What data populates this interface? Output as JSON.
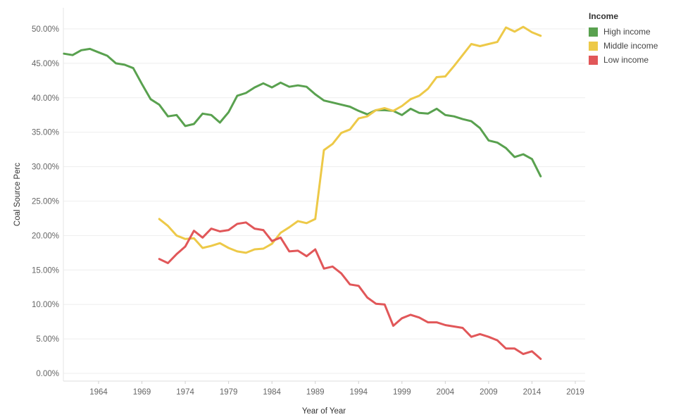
{
  "chart_data": {
    "type": "line",
    "xlabel": "Year of Year",
    "ylabel": "Coal Source Perc",
    "xlim": [
      1959.5,
      2020.3
    ],
    "ylim": [
      0,
      51
    ],
    "x_ticks": [
      1964,
      1969,
      1974,
      1979,
      1984,
      1989,
      1994,
      1999,
      2004,
      2009,
      2014,
      2019
    ],
    "y_ticks": [
      0,
      5,
      10,
      15,
      20,
      25,
      30,
      35,
      40,
      45,
      50
    ],
    "y_tick_labels": [
      "0.00%",
      "5.00%",
      "10.00%",
      "15.00%",
      "20.00%",
      "25.00%",
      "30.00%",
      "35.00%",
      "40.00%",
      "45.00%",
      "50.00%"
    ],
    "grid": "horizontal",
    "legend": {
      "title": "Income",
      "position": "right"
    },
    "series": [
      {
        "name": "High income",
        "color": "#59a14f",
        "x": [
          1960,
          1961,
          1962,
          1963,
          1964,
          1965,
          1966,
          1967,
          1968,
          1969,
          1970,
          1971,
          1972,
          1973,
          1974,
          1975,
          1976,
          1977,
          1978,
          1979,
          1980,
          1981,
          1982,
          1983,
          1984,
          1985,
          1986,
          1987,
          1988,
          1989,
          1990,
          1991,
          1992,
          1993,
          1994,
          1995,
          1996,
          1997,
          1998,
          1999,
          2000,
          2001,
          2002,
          2003,
          2004,
          2005,
          2006,
          2007,
          2008,
          2009,
          2010,
          2011,
          2012,
          2013,
          2014,
          2015
        ],
        "values": [
          46.4,
          46.2,
          46.9,
          47.1,
          46.6,
          46.1,
          45.0,
          44.8,
          44.3,
          42.0,
          39.8,
          39.0,
          37.3,
          37.5,
          35.9,
          36.2,
          37.7,
          37.5,
          36.4,
          37.9,
          40.3,
          40.7,
          41.5,
          42.1,
          41.5,
          42.2,
          41.6,
          41.8,
          41.6,
          40.5,
          39.6,
          39.3,
          39.0,
          38.7,
          38.1,
          37.6,
          38.2,
          38.2,
          38.1,
          37.5,
          38.4,
          37.8,
          37.7,
          38.4,
          37.5,
          37.3,
          36.9,
          36.6,
          35.6,
          33.8,
          33.5,
          32.7,
          31.4,
          31.8,
          31.1,
          28.6
        ]
      },
      {
        "name": "Middle income",
        "color": "#edc948",
        "x": [
          1971,
          1972,
          1973,
          1974,
          1975,
          1976,
          1977,
          1978,
          1979,
          1980,
          1981,
          1982,
          1983,
          1984,
          1985,
          1986,
          1987,
          1988,
          1989,
          1990,
          1991,
          1992,
          1993,
          1994,
          1995,
          1996,
          1997,
          1998,
          1999,
          2000,
          2001,
          2002,
          2003,
          2004,
          2005,
          2006,
          2007,
          2008,
          2009,
          2010,
          2011,
          2012,
          2013,
          2014,
          2015
        ],
        "values": [
          22.4,
          21.4,
          20.0,
          19.5,
          19.6,
          18.2,
          18.5,
          18.9,
          18.2,
          17.7,
          17.5,
          18.0,
          18.1,
          18.8,
          20.4,
          21.2,
          22.1,
          21.8,
          22.4,
          32.4,
          33.3,
          34.9,
          35.4,
          37.0,
          37.3,
          38.2,
          38.5,
          38.1,
          38.8,
          39.8,
          40.3,
          41.3,
          43.0,
          43.1,
          44.6,
          46.2,
          47.8,
          47.5,
          47.8,
          48.1,
          50.2,
          49.6,
          50.3,
          49.5,
          49.0
        ]
      },
      {
        "name": "Low income",
        "color": "#e15759",
        "x": [
          1971,
          1972,
          1973,
          1974,
          1975,
          1976,
          1977,
          1978,
          1979,
          1980,
          1981,
          1982,
          1983,
          1984,
          1985,
          1986,
          1987,
          1988,
          1989,
          1990,
          1991,
          1992,
          1993,
          1994,
          1995,
          1996,
          1997,
          1998,
          1999,
          2000,
          2001,
          2002,
          2003,
          2004,
          2005,
          2006,
          2007,
          2008,
          2009,
          2010,
          2011,
          2012,
          2013,
          2014,
          2015
        ],
        "values": [
          16.6,
          16.0,
          17.3,
          18.4,
          20.7,
          19.7,
          21.0,
          20.6,
          20.8,
          21.7,
          21.9,
          21.0,
          20.8,
          19.2,
          19.7,
          17.7,
          17.8,
          17.0,
          18.0,
          15.2,
          15.5,
          14.5,
          12.9,
          12.7,
          11.0,
          10.1,
          10.0,
          6.9,
          8.0,
          8.5,
          8.1,
          7.4,
          7.4,
          7.0,
          6.8,
          6.6,
          5.3,
          5.7,
          5.3,
          4.8,
          3.6,
          3.6,
          2.8,
          3.2,
          2.1
        ]
      }
    ]
  }
}
